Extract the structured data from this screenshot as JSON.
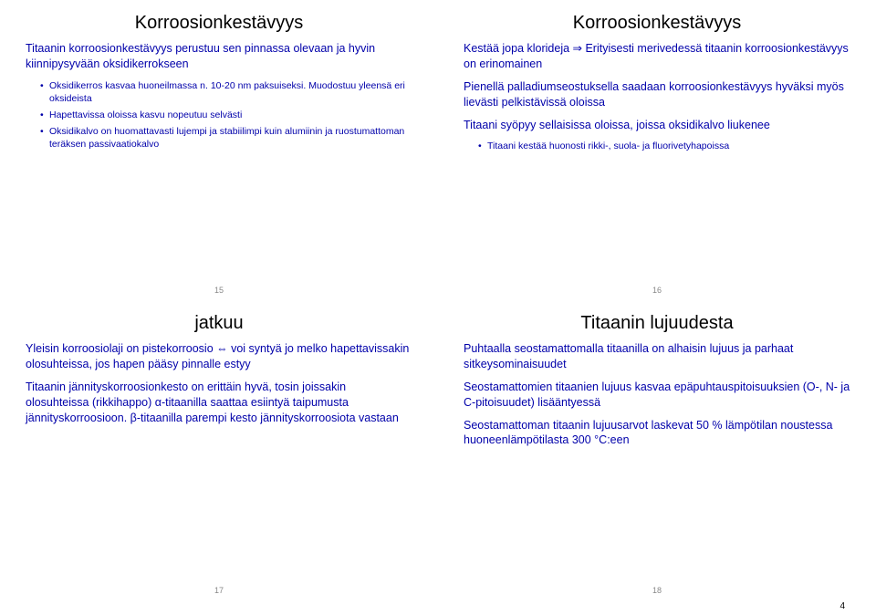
{
  "totalPage": "4",
  "slides": {
    "s15": {
      "title": "Korroosionkestävyys",
      "p1": "Titaanin korroosionkestävyys perustuu sen pinnassa olevaan ja hyvin kiinnipysyvään oksidikerrokseen",
      "b1": "Oksidikerros kasvaa huoneilmassa n. 10-20 nm paksuiseksi. Muodostuu yleensä eri oksideista",
      "b2": "Hapettavissa oloissa kasvu nopeutuu selvästi",
      "b3": "Oksidikalvo on huomattavasti lujempi ja stabiilimpi kuin alumiinin ja ruostumattoman teräksen passivaatiokalvo",
      "num": "15"
    },
    "s16": {
      "title": "Korroosionkestävyys",
      "p1": "Kestää jopa klorideja ⇒ Erityisesti merivedessä titaanin korroosionkestävyys on erinomainen",
      "p2": "Pienellä palladiumseostuksella saadaan korroosionkestävyys hyväksi myös lievästi pelkistävissä oloissa",
      "p3": "Titaani syöpyy sellaisissa oloissa, joissa oksidikalvo liukenee",
      "b1": "Titaani kestää huonosti rikki-, suola- ja fluorivetyhapoissa",
      "num": "16"
    },
    "s17": {
      "title": "jatkuu",
      "p1": "Yleisin korroosiolaji on pistekorroosio ⇔ voi syntyä jo melko hapettavissakin olosuhteissa, jos hapen pääsy pinnalle estyy",
      "p2": "Titaanin jännityskorroosionkesto on erittäin hyvä, tosin joissakin olosuhteissa (rikkihappo) α-titaanilla saattaa esiintyä taipumusta jännityskorroosioon. β-titaanilla parempi kesto jännityskorroosiota vastaan",
      "num": "17"
    },
    "s18": {
      "title": "Titaanin lujuudesta",
      "p1": "Puhtaalla seostamattomalla titaanilla on alhaisin lujuus ja parhaat sitkeysominaisuudet",
      "p2": "Seostamattomien titaanien lujuus kasvaa epäpuhtauspitoisuuksien (O-, N- ja C-pitoisuudet) lisääntyessä",
      "p3": "Seostamattoman titaanin lujuusarvot laskevat 50 % lämpötilan noustessa huoneenlämpötilasta 300 °C:een",
      "num": "18"
    }
  }
}
